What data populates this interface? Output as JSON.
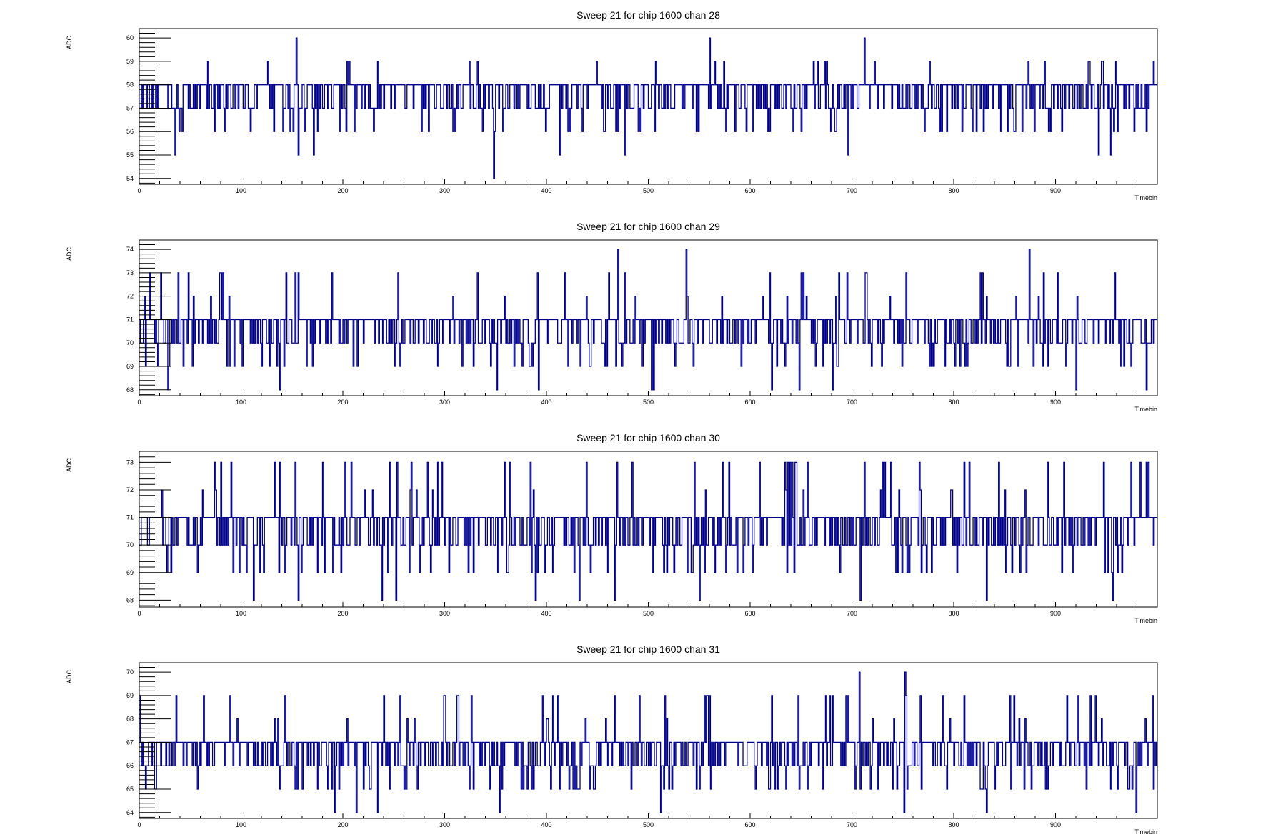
{
  "colors": {
    "series": "#00008b",
    "frame": "#000000",
    "background": "#ffffff"
  },
  "chart_data": [
    {
      "type": "line",
      "title": "Sweep 21 for chip 1600 chan 28",
      "xlabel": "Timebin",
      "ylabel": "ADC",
      "xlim": [
        0,
        1000
      ],
      "ylim": [
        53.75,
        60.4
      ],
      "x_ticks": [
        0,
        100,
        200,
        300,
        400,
        500,
        600,
        700,
        800,
        900
      ],
      "y_ticks": [
        54,
        55,
        56,
        57,
        58,
        59,
        60
      ],
      "grid": false,
      "legend": "none",
      "spikes": [
        {
          "x": 154,
          "y": 60
        },
        {
          "x": 156,
          "y": 55
        },
        {
          "x": 171,
          "y": 55
        },
        {
          "x": 348,
          "y": 54
        },
        {
          "x": 35,
          "y": 55
        },
        {
          "x": 413,
          "y": 55
        },
        {
          "x": 477,
          "y": 55
        },
        {
          "x": 560,
          "y": 60
        },
        {
          "x": 696,
          "y": 55
        },
        {
          "x": 712,
          "y": 60
        },
        {
          "x": 942,
          "y": 55
        },
        {
          "x": 954,
          "y": 55
        },
        {
          "x": 996,
          "y": 59
        }
      ],
      "series": [
        {
          "values_note": "",
          "seed": 28,
          "baseline": 57.6,
          "low": 56,
          "high": 59
        }
      ]
    },
    {
      "type": "line",
      "title": "Sweep 21 for chip 1600 chan 29",
      "xlabel": "Timebin",
      "ylabel": "ADC",
      "xlim": [
        0,
        1000
      ],
      "ylim": [
        67.75,
        74.4
      ],
      "x_ticks": [
        0,
        100,
        200,
        300,
        400,
        500,
        600,
        700,
        800,
        900
      ],
      "y_ticks": [
        68,
        69,
        70,
        71,
        72,
        73,
        74
      ],
      "grid": false,
      "legend": "none",
      "spikes": [
        {
          "x": 28,
          "y": 68
        },
        {
          "x": 138,
          "y": 68
        },
        {
          "x": 351,
          "y": 68
        },
        {
          "x": 392,
          "y": 68
        },
        {
          "x": 470,
          "y": 74
        },
        {
          "x": 503,
          "y": 68
        },
        {
          "x": 505,
          "y": 68
        },
        {
          "x": 537,
          "y": 74
        },
        {
          "x": 621,
          "y": 68
        },
        {
          "x": 648,
          "y": 68
        },
        {
          "x": 681,
          "y": 68
        },
        {
          "x": 874,
          "y": 74
        },
        {
          "x": 920,
          "y": 68
        },
        {
          "x": 989,
          "y": 68
        }
      ],
      "series": [
        {
          "values_note": "",
          "seed": 29,
          "baseline": 70.5,
          "low": 69,
          "high": 73
        }
      ]
    },
    {
      "type": "line",
      "title": "Sweep 21 for chip 1600 chan 30",
      "xlabel": "Timebin",
      "ylabel": "ADC",
      "xlim": [
        0,
        1000
      ],
      "ylim": [
        67.75,
        73.4
      ],
      "x_ticks": [
        0,
        100,
        200,
        300,
        400,
        500,
        600,
        700,
        800,
        900
      ],
      "y_ticks": [
        68,
        69,
        70,
        71,
        72,
        73
      ],
      "grid": false,
      "legend": "none",
      "spikes": [
        {
          "x": 112,
          "y": 68
        },
        {
          "x": 156,
          "y": 68
        },
        {
          "x": 238,
          "y": 68
        },
        {
          "x": 252,
          "y": 68
        },
        {
          "x": 389,
          "y": 68
        },
        {
          "x": 432,
          "y": 68
        },
        {
          "x": 467,
          "y": 68
        },
        {
          "x": 550,
          "y": 68
        },
        {
          "x": 708,
          "y": 68
        },
        {
          "x": 832,
          "y": 68
        },
        {
          "x": 956,
          "y": 68
        },
        {
          "x": 983,
          "y": 73
        }
      ],
      "series": [
        {
          "values_note": "",
          "seed": 30,
          "baseline": 70.6,
          "low": 69,
          "high": 73
        }
      ]
    },
    {
      "type": "line",
      "title": "Sweep 21 for chip 1600 chan 31",
      "xlabel": "Timebin",
      "ylabel": "ADC",
      "xlim": [
        0,
        1000
      ],
      "ylim": [
        63.75,
        70.4
      ],
      "x_ticks": [
        0,
        100,
        200,
        300,
        400,
        500,
        600,
        700,
        800,
        900
      ],
      "y_ticks": [
        64,
        65,
        66,
        67,
        68,
        69,
        70
      ],
      "grid": false,
      "legend": "none",
      "spikes": [
        {
          "x": 192,
          "y": 64
        },
        {
          "x": 213,
          "y": 64
        },
        {
          "x": 234,
          "y": 64
        },
        {
          "x": 354,
          "y": 64
        },
        {
          "x": 512,
          "y": 64
        },
        {
          "x": 707,
          "y": 70
        },
        {
          "x": 751,
          "y": 64
        },
        {
          "x": 752,
          "y": 70
        },
        {
          "x": 832,
          "y": 64
        },
        {
          "x": 979,
          "y": 64
        }
      ],
      "series": [
        {
          "values_note": "",
          "seed": 31,
          "baseline": 66.6,
          "low": 65,
          "high": 69
        }
      ]
    }
  ]
}
